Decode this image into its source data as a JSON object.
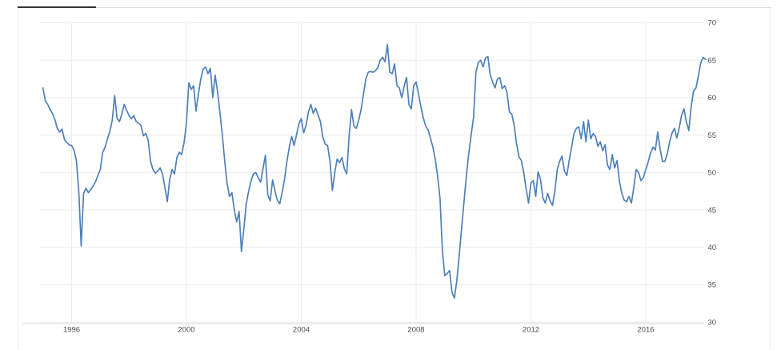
{
  "page": {
    "background": "#ffffff"
  },
  "card": {
    "accent_bar_color": "#333333",
    "rule_color": "#dcdcdc",
    "border_color": "#eeeeee"
  },
  "chart_data": {
    "type": "line",
    "title": "",
    "xlabel": "",
    "ylabel": "",
    "legend": "none",
    "grid": true,
    "line_color": "#4e80b7",
    "gridline_color": "#ebebeb",
    "axis_line_color": "#d7d7d7",
    "label_color": "#4c4e57",
    "ylim": [
      30,
      70
    ],
    "y_ticks": [
      30,
      35,
      40,
      45,
      50,
      55,
      60,
      65,
      70
    ],
    "y_tick_labels": [
      "30",
      "35",
      "40",
      "45",
      "50",
      "55",
      "60",
      "65",
      "70"
    ],
    "x_tick_years": [
      1996,
      2000,
      2004,
      2008,
      2012,
      2016
    ],
    "x_tick_labels": [
      "1996",
      "2000",
      "2004",
      "2008",
      "2012",
      "2016"
    ],
    "x_range_years": [
      1995.0,
      2018.17
    ],
    "frequency": "monthly",
    "start_year": 1995,
    "start_month": 1,
    "values": [
      61.3,
      59.6,
      59.1,
      58.4,
      57.9,
      57.1,
      55.9,
      55.4,
      55.8,
      54.4,
      54.0,
      53.7,
      53.6,
      53.0,
      51.6,
      47.5,
      40.2,
      47.2,
      47.9,
      47.3,
      47.7,
      48.2,
      48.8,
      49.6,
      50.4,
      52.7,
      53.4,
      54.5,
      55.5,
      57.0,
      60.3,
      57.2,
      56.8,
      57.8,
      59.1,
      58.3,
      57.6,
      57.2,
      57.6,
      56.8,
      56.6,
      56.3,
      54.9,
      55.2,
      54.3,
      51.5,
      50.4,
      49.9,
      50.2,
      50.6,
      49.8,
      48.0,
      46.1,
      49.1,
      50.4,
      49.8,
      52.0,
      52.7,
      52.4,
      54.0,
      56.6,
      62.0,
      61.1,
      61.6,
      58.2,
      60.5,
      62.5,
      63.8,
      64.1,
      63.2,
      63.9,
      60.0,
      63.0,
      60.8,
      58.0,
      55.0,
      51.5,
      48.5,
      46.8,
      47.3,
      45.0,
      43.4,
      44.8,
      39.4,
      42.5,
      45.8,
      47.5,
      48.9,
      49.8,
      50.0,
      49.3,
      48.7,
      50.5,
      52.3,
      47.0,
      46.2,
      49.0,
      47.5,
      46.3,
      45.8,
      47.3,
      49.1,
      51.5,
      53.4,
      54.8,
      53.6,
      55.0,
      56.5,
      57.2,
      55.3,
      56.3,
      58.1,
      59.1,
      57.9,
      58.6,
      57.7,
      56.8,
      54.7,
      53.8,
      53.6,
      51.5,
      47.6,
      50.0,
      51.8,
      51.3,
      52.0,
      50.5,
      49.8,
      54.9,
      58.4,
      56.2,
      55.9,
      57.0,
      58.4,
      60.5,
      62.5,
      63.4,
      63.5,
      63.4,
      63.6,
      64.0,
      65.0,
      65.4,
      64.8,
      67.1,
      63.4,
      63.2,
      64.5,
      61.6,
      61.3,
      60.0,
      61.5,
      62.7,
      59.1,
      58.5,
      61.6,
      62.1,
      60.5,
      58.8,
      57.3,
      56.2,
      55.7,
      54.6,
      53.4,
      51.8,
      49.5,
      46.5,
      39.5,
      36.2,
      36.5,
      36.9,
      34.0,
      33.2,
      35.5,
      38.8,
      42.5,
      46.0,
      49.5,
      52.5,
      55.0,
      57.3,
      63.4,
      64.7,
      65.0,
      64.1,
      65.3,
      65.5,
      63.0,
      62.1,
      61.3,
      62.5,
      62.7,
      61.2,
      61.6,
      60.7,
      58.1,
      57.8,
      56.3,
      53.8,
      52.1,
      51.6,
      50.0,
      47.8,
      45.9,
      48.6,
      48.9,
      46.8,
      50.1,
      49.1,
      46.6,
      45.9,
      47.2,
      46.2,
      45.6,
      47.5,
      50.4,
      51.5,
      52.2,
      50.2,
      49.6,
      51.6,
      53.4,
      55.2,
      55.9,
      56.1,
      54.5,
      56.8,
      54.1,
      57.0,
      54.5,
      55.2,
      54.8,
      53.5,
      54.1,
      52.9,
      53.7,
      51.0,
      50.4,
      52.4,
      50.6,
      51.6,
      48.8,
      47.2,
      46.3,
      46.1,
      46.8,
      45.9,
      48.0,
      50.4,
      50.0,
      48.9,
      49.3,
      50.4,
      51.4,
      52.6,
      53.4,
      53.0,
      55.4,
      53.1,
      51.5,
      51.5,
      52.5,
      54.1,
      55.3,
      55.9,
      54.6,
      56.0,
      57.7,
      58.5,
      56.7,
      55.6,
      58.9,
      60.9,
      61.3,
      62.9,
      64.7,
      65.4,
      65.1
    ]
  }
}
